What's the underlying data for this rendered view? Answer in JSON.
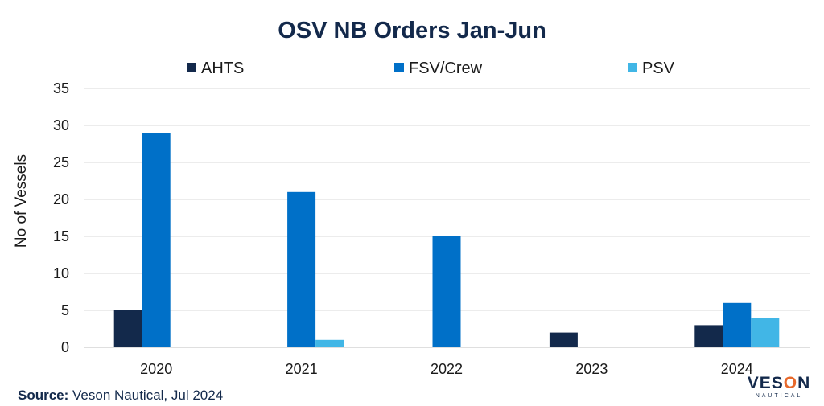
{
  "chart_data": {
    "type": "bar",
    "title": "OSV NB Orders Jan-Jun",
    "ylabel": "No of Vessels",
    "xlabel": "",
    "categories": [
      "2020",
      "2021",
      "2022",
      "2023",
      "2024"
    ],
    "series": [
      {
        "name": "AHTS",
        "color": "#13294b",
        "values": [
          5,
          0,
          0,
          2,
          3
        ]
      },
      {
        "name": "FSV/Crew",
        "color": "#0070c8",
        "values": [
          29,
          21,
          15,
          0,
          6
        ]
      },
      {
        "name": "PSV",
        "color": "#41b6e6",
        "values": [
          0,
          1,
          0,
          0,
          4
        ]
      }
    ],
    "ylim": [
      0,
      35
    ],
    "yticks": [
      "0",
      "5",
      "10",
      "15",
      "20",
      "25",
      "30",
      "35"
    ],
    "grid": true,
    "legend": "top"
  },
  "source": {
    "label": "Source:",
    "text": "Veson Nautical, Jul 2024"
  },
  "logo": {
    "name": "VESON",
    "subtitle": "NAUTICAL"
  }
}
